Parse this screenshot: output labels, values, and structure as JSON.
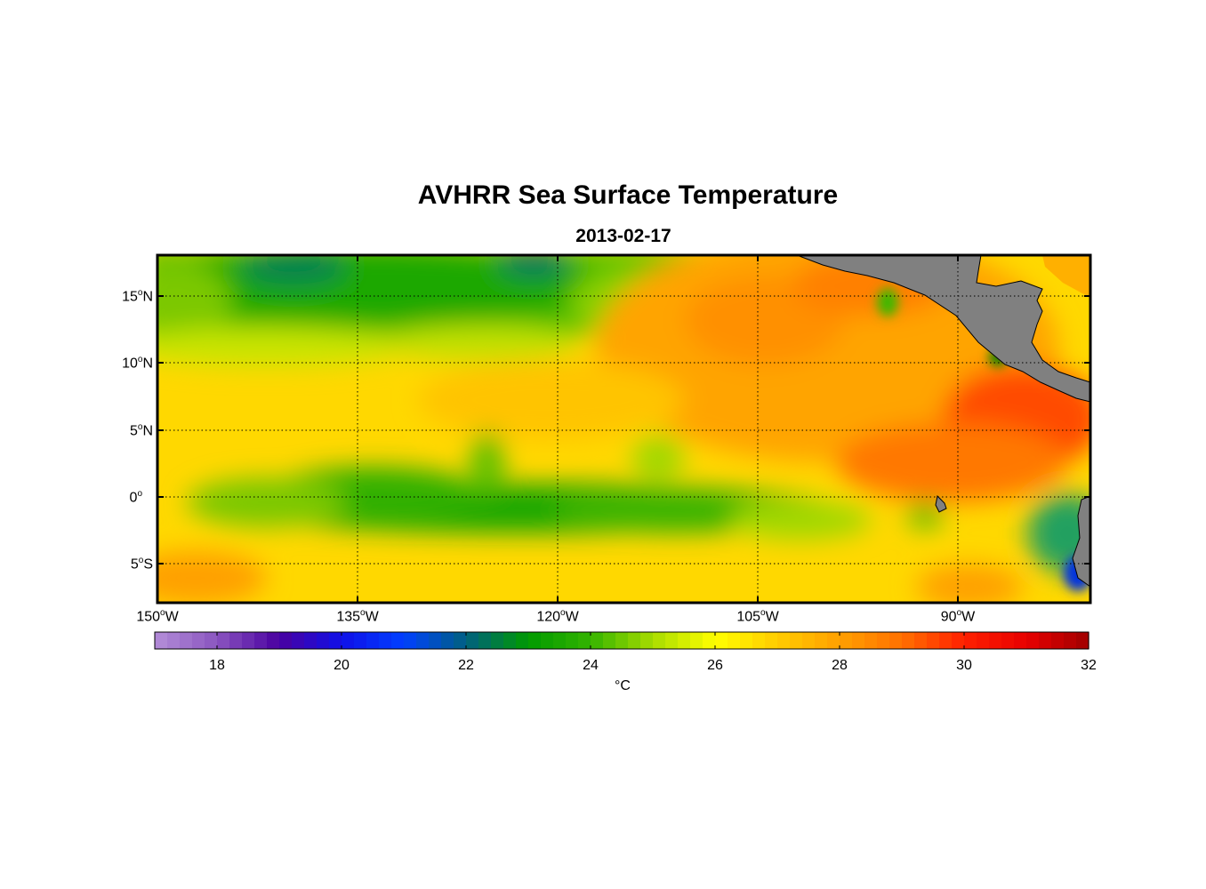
{
  "map": {
    "title": "AVHRR Sea Surface Temperature",
    "subtitle": "2013-02-17",
    "lat_labels": [
      {
        "value": 15,
        "deg": "15",
        "sup": "o",
        "hemi": "N"
      },
      {
        "value": 10,
        "deg": "10",
        "sup": "o",
        "hemi": "N"
      },
      {
        "value": 5,
        "deg": "5",
        "sup": "o",
        "hemi": "N"
      },
      {
        "value": 0,
        "deg": "0",
        "sup": "o",
        "hemi": ""
      },
      {
        "value": -5,
        "deg": "5",
        "sup": "o",
        "hemi": "S"
      }
    ],
    "lon_labels": [
      {
        "value": -150,
        "deg": "150",
        "sup": "o",
        "hemi": "W"
      },
      {
        "value": -135,
        "deg": "135",
        "sup": "o",
        "hemi": "W"
      },
      {
        "value": -120,
        "deg": "120",
        "sup": "o",
        "hemi": "W"
      },
      {
        "value": -105,
        "deg": "105",
        "sup": "o",
        "hemi": "W"
      },
      {
        "value": -90,
        "deg": "90",
        "sup": "o",
        "hemi": "W"
      }
    ],
    "extent": {
      "lon_min": -150,
      "lon_max": -80,
      "lat_min": -8,
      "lat_max": 18
    },
    "grid": true,
    "land_color": "#808080"
  },
  "colorbar": {
    "ticks": [
      "18",
      "20",
      "22",
      "24",
      "26",
      "28",
      "30",
      "32"
    ],
    "range": [
      17,
      32
    ],
    "unit": "°C",
    "stops": [
      {
        "v": 17,
        "c": "#b48ed8"
      },
      {
        "v": 18,
        "c": "#8a55c0"
      },
      {
        "v": 19,
        "c": "#4a00a0"
      },
      {
        "v": 20,
        "c": "#1010e8"
      },
      {
        "v": 21,
        "c": "#0040ff"
      },
      {
        "v": 22,
        "c": "#006080"
      },
      {
        "v": 23,
        "c": "#009a00"
      },
      {
        "v": 24,
        "c": "#34b400"
      },
      {
        "v": 25,
        "c": "#a8dc00"
      },
      {
        "v": 26,
        "c": "#ffff00"
      },
      {
        "v": 27,
        "c": "#ffcc00"
      },
      {
        "v": 28,
        "c": "#ffa000"
      },
      {
        "v": 29,
        "c": "#ff7000"
      },
      {
        "v": 30,
        "c": "#ff2000"
      },
      {
        "v": 31,
        "c": "#e80000"
      },
      {
        "v": 32,
        "c": "#a00000"
      }
    ]
  }
}
